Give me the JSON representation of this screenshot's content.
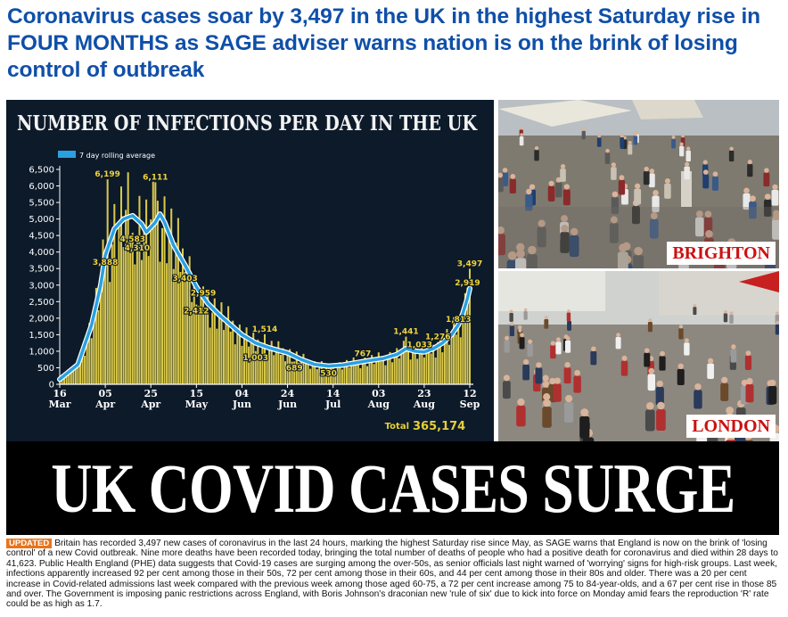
{
  "headline": "Coronavirus cases soar by 3,497 in the UK in the highest Saturday rise in FOUR MONTHS as SAGE adviser warns nation is on the brink of losing control of outbreak",
  "banner": "UK COVID CASES SURGE",
  "photos": [
    {
      "label": "BRIGHTON"
    },
    {
      "label": "LONDON"
    }
  ],
  "article": {
    "badge": "UPDATED",
    "text": "Britain has recorded 3,497 new cases of coronavirus in the last 24 hours, marking the highest Saturday rise since May, as SAGE warns that England is now on the brink of 'losing control' of a new Covid outbreak. Nine more deaths have been recorded today, bringing the total number of deaths of people who had a positive death for coronavirus and died within 28 days to 41,623. Public Health England (PHE) data suggests that Covid-19 cases are surging among the over-50s, as senior officials last night warned of 'worrying' signs for high-risk groups. Last week, infections apparently increased 92 per cent among those in their 50s, 72 per cent among those in their 60s, and 44 per cent among those in their 80s and older. There was a 20 per cent increase in Covid-related admissions last week compared with the previous week among those aged 60-75, a 72 per cent increase among 75 to 84-year-olds, and a 67 per cent rise in those 85 and over. The Government is imposing panic restrictions across England, with Boris Johnson's draconian new 'rule of six' due to kick into force on Monday amid fears the reproduction 'R' rate could be as high as 1.7."
  },
  "colors": {
    "headline": "#0f4fa8",
    "chart_background": "#0c1a2a",
    "bars": "#d9c84a",
    "rolling_line": "#2aa0e0",
    "photo_label": "#cc1111",
    "badge": "#e8741c"
  },
  "chart_data": {
    "type": "bar",
    "title": "NUMBER OF INFECTIONS PER DAY IN THE UK",
    "legend": "7 day rolling average",
    "legend_position": "top-left",
    "ylim": [
      0,
      6500
    ],
    "yticks": [
      "0",
      "500",
      "1,000",
      "1,500",
      "2,000",
      "2,500",
      "3,000",
      "3,500",
      "4,000",
      "4,500",
      "5,000",
      "5,500",
      "6,000",
      "6,500"
    ],
    "xticks": [
      {
        "day": "16",
        "month": "Mar",
        "index": 0
      },
      {
        "day": "05",
        "month": "Apr",
        "index": 20
      },
      {
        "day": "25",
        "month": "Apr",
        "index": 40
      },
      {
        "day": "15",
        "month": "May",
        "index": 60
      },
      {
        "day": "04",
        "month": "Jun",
        "index": 80
      },
      {
        "day": "24",
        "month": "Jun",
        "index": 100
      },
      {
        "day": "14",
        "month": "Jul",
        "index": 120
      },
      {
        "day": "03",
        "month": "Aug",
        "index": 140
      },
      {
        "day": "23",
        "month": "Aug",
        "index": 160
      },
      {
        "day": "12",
        "month": "Sep",
        "index": 180
      }
    ],
    "annotations": [
      {
        "index": 20,
        "value": 3888,
        "label": "3,888"
      },
      {
        "index": 21,
        "value": 6199,
        "label": "6,199"
      },
      {
        "index": 32,
        "value": 4583,
        "label": "4,583"
      },
      {
        "index": 34,
        "value": 4310,
        "label": "4,310"
      },
      {
        "index": 42,
        "value": 6111,
        "label": "6,111"
      },
      {
        "index": 55,
        "value": 3403,
        "label": "3,403"
      },
      {
        "index": 63,
        "value": 2959,
        "label": "2,959"
      },
      {
        "index": 60,
        "value": 2412,
        "label": "2,412"
      },
      {
        "index": 90,
        "value": 1514,
        "label": "1,514"
      },
      {
        "index": 86,
        "value": 1003,
        "label": "1,003"
      },
      {
        "index": 103,
        "value": 689,
        "label": "689"
      },
      {
        "index": 118,
        "value": 530,
        "label": "530"
      },
      {
        "index": 133,
        "value": 767,
        "label": "767"
      },
      {
        "index": 152,
        "value": 1441,
        "label": "1,441"
      },
      {
        "index": 158,
        "value": 1033,
        "label": "1,033"
      },
      {
        "index": 166,
        "value": 1276,
        "label": "1,276"
      },
      {
        "index": 175,
        "value": 1813,
        "label": "1,813"
      },
      {
        "index": 179,
        "value": 2919,
        "label": "2,919"
      },
      {
        "index": 180,
        "value": 3497,
        "label": "3,497"
      }
    ],
    "rolling_average": [
      [
        0,
        150
      ],
      [
        8,
        600
      ],
      [
        14,
        1800
      ],
      [
        18,
        3000
      ],
      [
        20,
        3900
      ],
      [
        24,
        4700
      ],
      [
        28,
        5000
      ],
      [
        32,
        5100
      ],
      [
        36,
        4850
      ],
      [
        38,
        4600
      ],
      [
        40,
        4750
      ],
      [
        42,
        4900
      ],
      [
        44,
        5150
      ],
      [
        46,
        4900
      ],
      [
        50,
        4200
      ],
      [
        55,
        3600
      ],
      [
        60,
        2950
      ],
      [
        65,
        2450
      ],
      [
        70,
        2100
      ],
      [
        75,
        1800
      ],
      [
        80,
        1500
      ],
      [
        86,
        1250
      ],
      [
        92,
        1100
      ],
      [
        100,
        950
      ],
      [
        106,
        750
      ],
      [
        112,
        600
      ],
      [
        118,
        550
      ],
      [
        124,
        580
      ],
      [
        130,
        650
      ],
      [
        136,
        720
      ],
      [
        142,
        780
      ],
      [
        148,
        900
      ],
      [
        152,
        1080
      ],
      [
        156,
        1000
      ],
      [
        160,
        980
      ],
      [
        164,
        1080
      ],
      [
        168,
        1250
      ],
      [
        172,
        1500
      ],
      [
        175,
        1800
      ],
      [
        177,
        2150
      ],
      [
        179,
        2600
      ],
      [
        180,
        2900
      ]
    ],
    "total_label": "Total",
    "total_value": "365,174"
  }
}
